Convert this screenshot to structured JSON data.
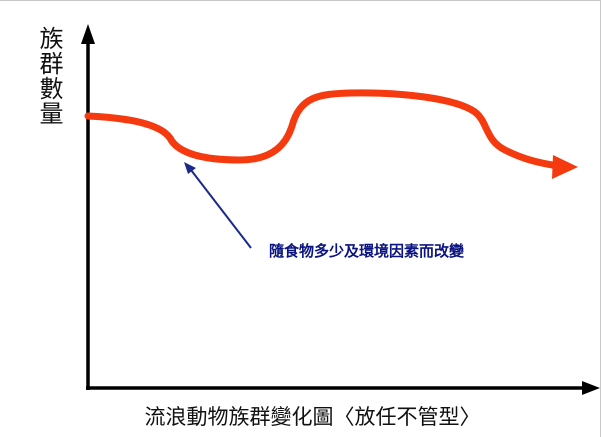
{
  "diagram": {
    "y_axis_label": "族群數量",
    "annotation": "隨食物多少及環境因素而改變",
    "caption": "流浪動物族群變化圖〈放任不管型〉",
    "colors": {
      "curve": "#f53a10",
      "arrow": "#1a2a8a",
      "axes": "#000000",
      "annotation_text": "#0b1480"
    }
  }
}
